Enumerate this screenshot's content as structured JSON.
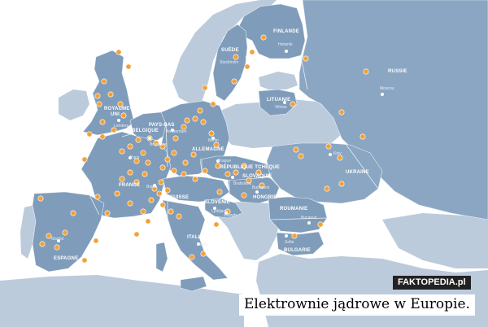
{
  "colors": {
    "sea": "#ffffff",
    "land_other": "#bccbdc",
    "land_main": "#7f9cba",
    "land_east": "#8aa6c2",
    "border": "#e8eef5",
    "marker": "#f2a23a",
    "marker_outline": "#ffffff",
    "capital": "#ffffff"
  },
  "countries": [
    "FINLANDE",
    "SUÈDE",
    "RUSSIE",
    "LITUANIE",
    "ROYAUME-",
    "UNI",
    "BELGIQUE",
    "PAYS-BAS",
    "ALLEMAGNE",
    "RÉPUBLIQUE TCHÈQUE",
    "SLOVAQUIE",
    "HONGRIE",
    "UKRAINE",
    "FRANCE",
    "SUISSE",
    "SLOVÉNIE",
    "ROUMANIE",
    "BULGARIE",
    "ITALIE",
    "ESPAGNE"
  ],
  "cities": [
    "Helsinki",
    "Stockholm",
    "Moscou",
    "Vilnius",
    "Londres",
    "Amsterdam",
    "Bruxelles",
    "Berlin",
    "Paris",
    "Berne",
    "Prague",
    "Bratislava",
    "Budapest",
    "Kiev",
    "Ljubljana",
    "Zagreb",
    "Bucarest",
    "Sofia",
    "Rome",
    "Madrid"
  ],
  "watermark": "FAKTOPEDIA.pl",
  "caption": "Elektrownie jądrowe w Europie."
}
